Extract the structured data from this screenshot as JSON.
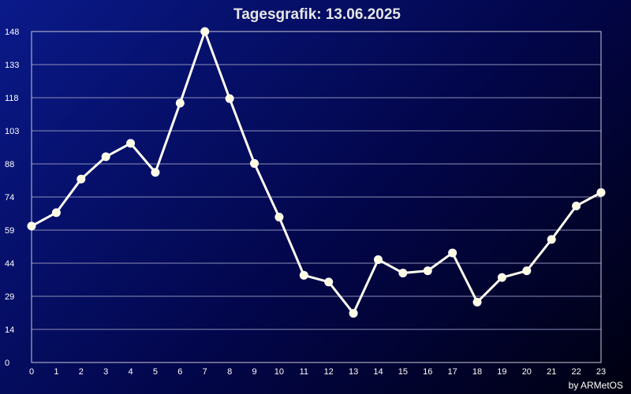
{
  "chart_data": {
    "type": "line",
    "title": "Tagesgrafik: 13.06.2025",
    "credit": "by ARMetOS",
    "x": [
      0,
      1,
      2,
      3,
      4,
      5,
      6,
      7,
      8,
      9,
      10,
      11,
      12,
      13,
      14,
      15,
      16,
      17,
      18,
      19,
      20,
      21,
      22,
      23
    ],
    "x_tick_labels": [
      "0",
      "1",
      "2",
      "3",
      "4",
      "5",
      "6",
      "7",
      "8",
      "9",
      "10",
      "11",
      "12",
      "13",
      "14",
      "15",
      "16",
      "17",
      "18",
      "19",
      "20",
      "21",
      "22",
      "23"
    ],
    "y_tick_labels": [
      "0",
      "14",
      "29",
      "44",
      "59",
      "74",
      "88",
      "103",
      "118",
      "133",
      "148"
    ],
    "series": [
      {
        "values": [
          61,
          67,
          82,
          92,
          98,
          85,
          116,
          148,
          118,
          89,
          65,
          39,
          36,
          22,
          46,
          40,
          41,
          49,
          27,
          38,
          41,
          55,
          70,
          76
        ]
      }
    ],
    "ylim": [
      0,
      148
    ],
    "grid": true,
    "colors": {
      "line": "#fffdf0",
      "grid": "#8a8fb8"
    }
  }
}
